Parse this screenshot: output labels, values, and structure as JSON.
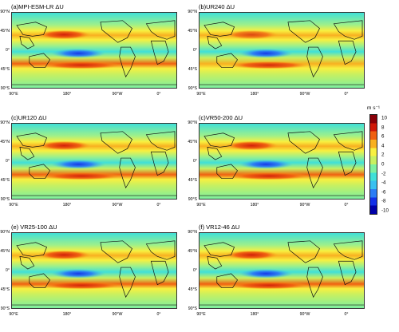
{
  "panels": [
    {
      "title": "(a)MPI-ESM-LR ΔU"
    },
    {
      "title": "(b)UR240 ΔU"
    },
    {
      "title": "(c)UR120 ΔU"
    },
    {
      "title": "(c)VR50-200 ΔU"
    },
    {
      "title": "(e) VR25-100 ΔU"
    },
    {
      "title": "(f) VR12-46 ΔU"
    }
  ],
  "axes": {
    "lat_labels": [
      "90°N",
      "45°N",
      "0°",
      "45°S",
      "90°S"
    ],
    "lon_labels": [
      "90°E",
      "180°",
      "90°W",
      "0°"
    ]
  },
  "colorbar": {
    "unit": "m s⁻¹",
    "ticks": [
      "10",
      "8",
      "6",
      "4",
      "2",
      "0",
      "-2",
      "-4",
      "-6",
      "-8",
      "-10"
    ],
    "colors": [
      "#0000a8",
      "#1230e8",
      "#2b7df5",
      "#38c0f0",
      "#40e0d8",
      "#7df0a0",
      "#c8f060",
      "#f8f040",
      "#f8b020",
      "#f06010",
      "#d01808",
      "#8a0008"
    ]
  }
}
